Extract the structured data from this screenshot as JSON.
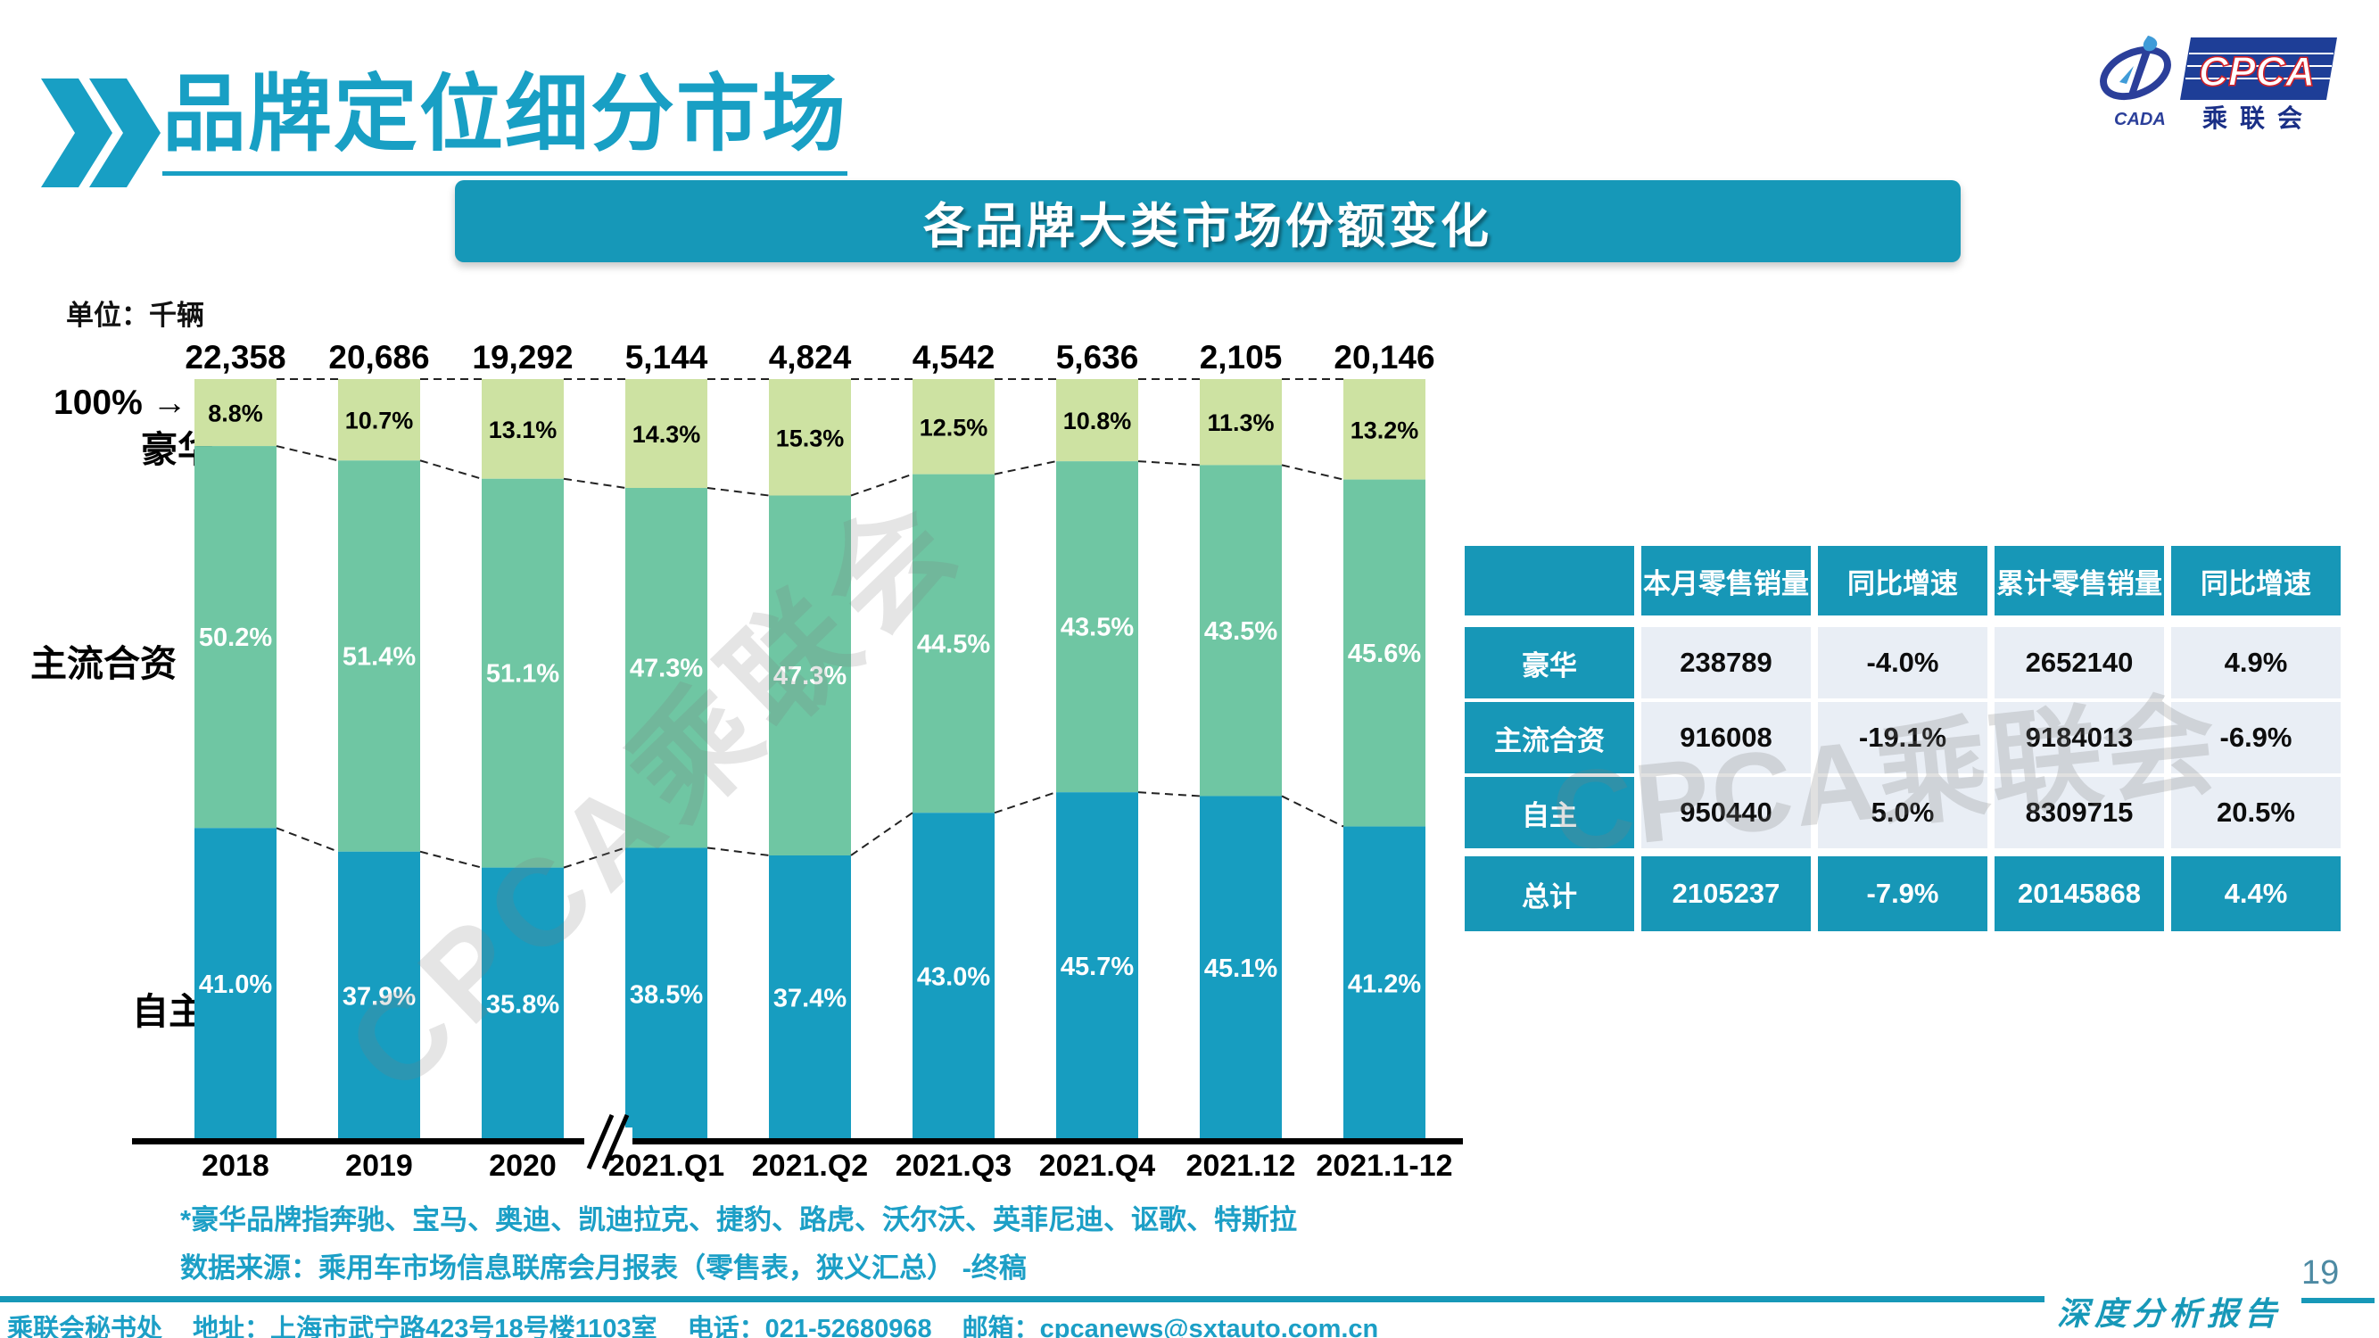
{
  "header": {
    "title": "品牌定位细分市场"
  },
  "logo": {
    "cpca": "CPCA",
    "cada": "CADA",
    "cn": "乘联会"
  },
  "banner": {
    "title": "各品牌大类市场份额变化"
  },
  "chart_annotations": {
    "unit": "单位：千辆",
    "hundred_pct": "100%",
    "arrow": "→",
    "luxury": "豪华",
    "mainstream": "主流合资",
    "domestic": "自主"
  },
  "chart_data": {
    "type": "bar",
    "subtype": "stacked-100-percent",
    "title": "各品牌大类市场份额变化",
    "unit": "千辆",
    "categories": [
      "2018",
      "2019",
      "2020",
      "2021.Q1",
      "2021.Q2",
      "2021.Q3",
      "2021.Q4",
      "2021.12",
      "2021.1-12"
    ],
    "totals": [
      "22,358",
      "20,686",
      "19,292",
      "5,144",
      "4,824",
      "4,542",
      "5,636",
      "2,105",
      "20,146"
    ],
    "series": [
      {
        "name": "豪华",
        "color": "#cde2a2",
        "label_color": "#000000",
        "values": [
          8.8,
          10.7,
          13.1,
          14.3,
          15.3,
          12.5,
          10.8,
          11.3,
          13.2
        ]
      },
      {
        "name": "主流合资",
        "color": "#6fc6a3",
        "label_color": "#ffffff",
        "values": [
          50.2,
          51.4,
          51.1,
          47.3,
          47.3,
          44.5,
          43.5,
          43.5,
          45.6
        ]
      },
      {
        "name": "自主",
        "color": "#179dc0",
        "label_color": "#ffffff",
        "values": [
          41.0,
          37.9,
          35.8,
          38.5,
          37.4,
          43.0,
          45.7,
          45.1,
          41.2
        ]
      }
    ],
    "ylim": [
      0,
      100
    ],
    "grid": false,
    "legend_position": "left-axis-labels",
    "axis_break_between": [
      "2020",
      "2021.Q1"
    ],
    "connector_lines": "dashed between adjacent bar segment boundaries"
  },
  "table": {
    "headers": [
      "",
      "本月零售销量",
      "同比增速",
      "累计零售销量",
      "同比增速"
    ],
    "rows": [
      {
        "label": "豪华",
        "cells": [
          "238789",
          "-4.0%",
          "2652140",
          "4.9%"
        ],
        "is_total": false
      },
      {
        "label": "主流合资",
        "cells": [
          "916008",
          "-19.1%",
          "9184013",
          "-6.9%"
        ],
        "is_total": false
      },
      {
        "label": "自主",
        "cells": [
          "950440",
          "5.0%",
          "8309715",
          "20.5%"
        ],
        "is_total": false
      },
      {
        "label": "总计",
        "cells": [
          "2105237",
          "-7.9%",
          "20145868",
          "4.4%"
        ],
        "is_total": true
      }
    ]
  },
  "watermark": {
    "text": "CPCA乘联会"
  },
  "footnotes": {
    "line1": "*豪华品牌指奔驰、宝马、奥迪、凯迪拉克、捷豹、路虎、沃尔沃、英菲尼迪、讴歌、特斯拉",
    "line2": "数据来源：乘用车市场信息联席会月报表（零售表，狭义汇总） -终稿"
  },
  "footer": {
    "secretariat": "乘联会秘书处",
    "address": "地址：上海市武宁路423号18号楼1103室",
    "phone": "电话：021-52680968",
    "email": "邮箱：cpcanews@sxtauto.com.cn",
    "page": "19",
    "report": "深度分析报告"
  },
  "colors": {
    "teal_ui": "#1798b8",
    "title_teal": "#189fc4",
    "bar_blue": "#179dc0",
    "bar_green": "#6fc6a3",
    "bar_light_green": "#cde2a2",
    "table_body": "#e9eef5",
    "footnote_teal": "#1c9fc6",
    "logo_navy": "#1e3e97"
  }
}
